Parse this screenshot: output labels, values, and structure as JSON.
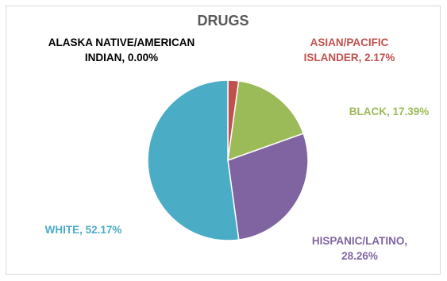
{
  "chart_data": {
    "type": "pie",
    "title": "DRUGS",
    "categories": [
      "ALASKA NATIVE/AMERICAN INDIAN",
      "ASIAN/PACIFIC ISLANDER",
      "BLACK",
      "HISPANIC/LATINO",
      "WHITE"
    ],
    "values": [
      0.0,
      2.17,
      17.39,
      28.26,
      52.17
    ],
    "colors": [
      "#000000",
      "#c0504d",
      "#9bbb59",
      "#8064a2",
      "#4bacc6"
    ],
    "data_labels": {
      "alaska": {
        "line1": "ALASKA NATIVE/AMERICAN",
        "line2": "INDIAN, 0.00%"
      },
      "asian": {
        "line1": "ASIAN/PACIFIC",
        "line2": "ISLANDER, 2.17%"
      },
      "black": {
        "line1": "BLACK, 17.39%"
      },
      "hispanic": {
        "line1": "HISPANIC/LATINO,",
        "line2": "28.26%"
      },
      "white": {
        "line1": "WHITE, 52.17%"
      }
    }
  }
}
